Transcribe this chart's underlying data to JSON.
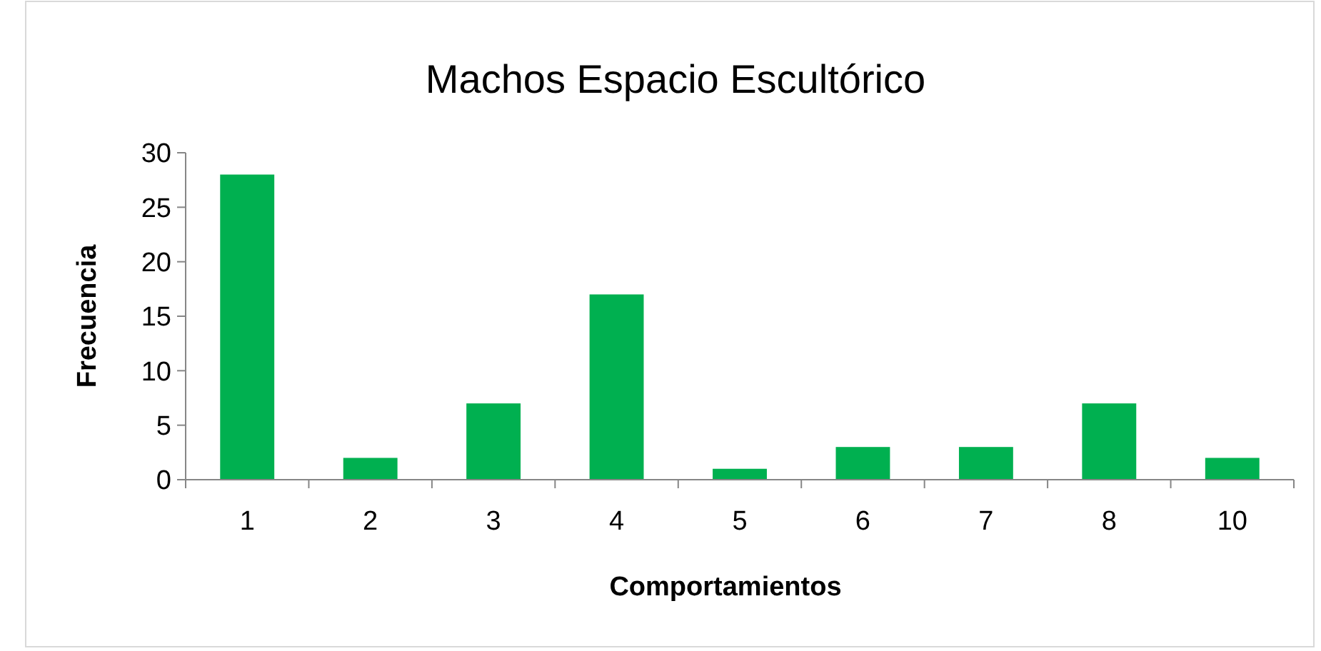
{
  "chart_data": {
    "type": "bar",
    "title": "Machos Espacio Escultórico",
    "xlabel": "Comportamientos",
    "ylabel": "Frecuencia",
    "categories": [
      "1",
      "2",
      "3",
      "4",
      "5",
      "6",
      "7",
      "8",
      "10"
    ],
    "values": [
      28,
      2,
      7,
      17,
      1,
      3,
      3,
      7,
      2
    ],
    "color": "#00b050",
    "ylim": [
      0,
      30
    ],
    "yticks": [
      0,
      5,
      10,
      15,
      20,
      25,
      30
    ],
    "grid": false
  }
}
